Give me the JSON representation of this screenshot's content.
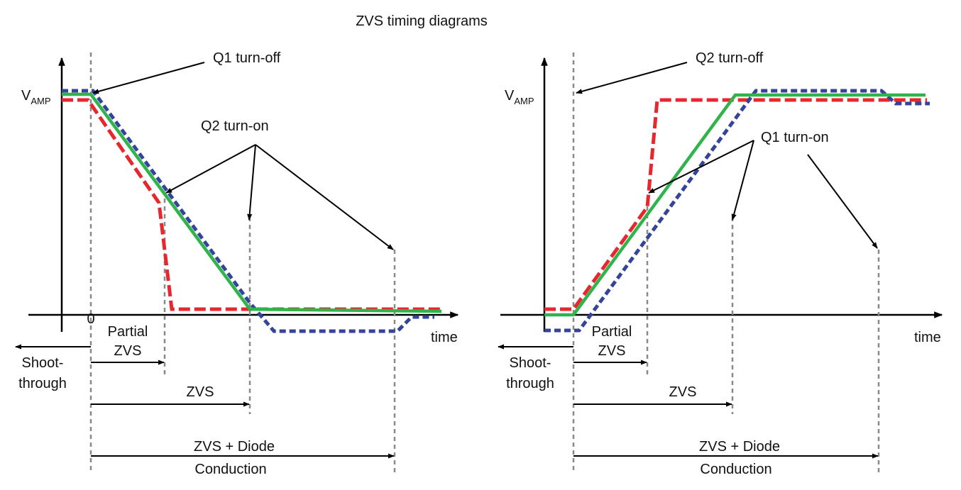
{
  "title": "ZVS timing diagrams",
  "left_panel": {
    "y_label": "V",
    "y_label_sub": "AMP",
    "x_label": "time",
    "origin_label": "0",
    "q_turnoff": "Q1 turn-off",
    "q_turnon": "Q2 turn-on",
    "shoot_line1": "Shoot-",
    "shoot_line2": "through",
    "partial_line1": "Partial",
    "partial_line2": "ZVS",
    "zvs": "ZVS",
    "zvs_diode_line1": "ZVS + Diode",
    "zvs_diode_line2": "Conduction"
  },
  "right_panel": {
    "y_label": "V",
    "y_label_sub": "AMP",
    "x_label": "time",
    "q_turnoff": "Q2 turn-off",
    "q_turnon": "Q1 turn-on",
    "shoot_line1": "Shoot-",
    "shoot_line2": "through",
    "partial_line1": "Partial",
    "partial_line2": "ZVS",
    "zvs": "ZVS",
    "zvs_diode_line1": "ZVS + Diode",
    "zvs_diode_line2": "Conduction"
  },
  "colors": {
    "green_trace": "#2fb34a",
    "red_trace": "#e8262d",
    "blue_trace": "#34449a"
  }
}
